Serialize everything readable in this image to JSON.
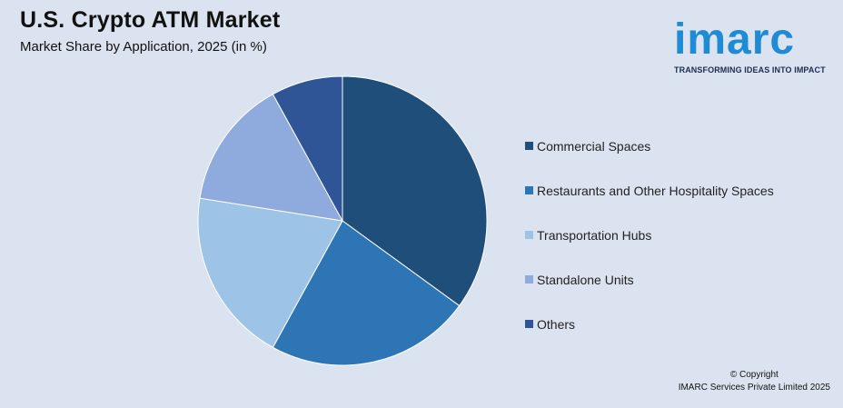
{
  "header": {
    "title": "U.S. Crypto ATM Market",
    "subtitle": "Market Share by Application, 2025 (in %)"
  },
  "logo": {
    "word": "imarc",
    "tagline": "TRANSFORMING IDEAS INTO IMPACT",
    "color": "#1e8bd4"
  },
  "footer": {
    "copyright_line1": "© Copyright",
    "copyright_line2": "IMARC Services Private Limited 2025"
  },
  "chart_data": {
    "type": "pie",
    "title": "U.S. Crypto ATM Market",
    "subtitle": "Market Share by Application, 2025 (in %)",
    "legend_position": "right",
    "slices": [
      {
        "label": "Commercial Spaces",
        "value": 35,
        "color": "#1f4e7a"
      },
      {
        "label": "Restaurants and Other Hospitality Spaces",
        "value": 23,
        "color": "#2e75b6"
      },
      {
        "label": "Transportation Hubs",
        "value": 19.5,
        "color": "#9dc3e6"
      },
      {
        "label": "Standalone Units",
        "value": 14.5,
        "color": "#8faadc"
      },
      {
        "label": "Others",
        "value": 8,
        "color": "#2f5597"
      }
    ]
  }
}
